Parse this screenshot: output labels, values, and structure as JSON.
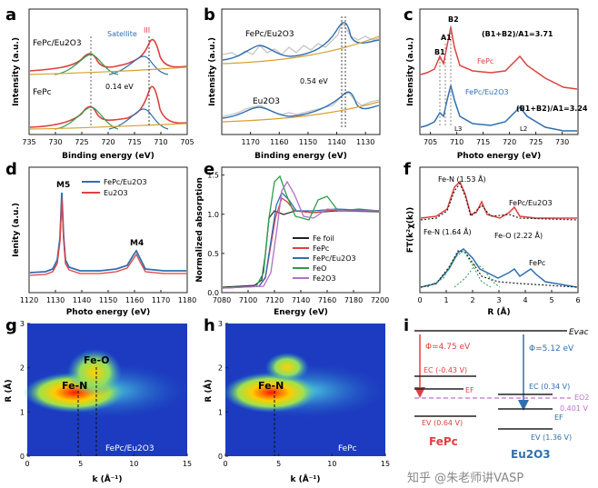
{
  "panels": {
    "a": {
      "letter": "a",
      "xlabel": "Binding energy (eV)",
      "ylabel": "Intensity (a.u.)",
      "xlim": [
        735,
        705
      ],
      "xticks": [
        735,
        730,
        725,
        720,
        715,
        710,
        705
      ],
      "labels": {
        "top": "FePc/Eu2O3",
        "bottom": "FePc",
        "satellite": "Satellite",
        "iii": "III",
        "shift": "0.14 eV"
      }
    },
    "b": {
      "letter": "b",
      "xlabel": "Binding energy (eV)",
      "ylabel": "Intensity (a.u.)",
      "xlim": [
        1180,
        1125
      ],
      "xticks": [
        1170,
        1160,
        1150,
        1140,
        1130
      ],
      "labels": {
        "top": "FePc/Eu2O3",
        "bottom": "Eu2O3",
        "shift": "0.54 eV"
      }
    },
    "c": {
      "letter": "c",
      "xlabel": "Photo energy (eV)",
      "ylabel": "Intensity (a.u.)",
      "xlim": [
        703,
        733
      ],
      "xticks": [
        705,
        710,
        715,
        720,
        725,
        730
      ],
      "labels": {
        "b1": "B1",
        "a1": "A1",
        "b2": "B2",
        "ratio_top": "(B1+B2)/A1=3.71",
        "ratio_bottom": "(B1+B2)/A1=3.24",
        "fepc": "FePc",
        "fepc_eu": "FePc/Eu2O3",
        "l3": "L3",
        "l2": "L2"
      }
    },
    "d": {
      "letter": "d",
      "xlabel": "Photo energy (eV)",
      "ylabel": "Ienity (a.u.)",
      "xlim": [
        1120,
        1180
      ],
      "xticks": [
        1120,
        1130,
        1140,
        1150,
        1160,
        1170,
        1180
      ],
      "labels": {
        "m5": "M5",
        "m4": "M4"
      },
      "legend": [
        "FePc/Eu2O3",
        "Eu2O3"
      ]
    },
    "e": {
      "letter": "e",
      "xlabel": "Energy (eV)",
      "ylabel": "Normalized absorption",
      "xlim": [
        7080,
        7200
      ],
      "ylim": [
        0,
        1.6
      ],
      "xticks": [
        7080,
        7100,
        7120,
        7140,
        7160,
        7180,
        7200
      ],
      "yticks": [
        0.0,
        0.5,
        1.0,
        1.5
      ],
      "legend": [
        "Fe foil",
        "FePc",
        "FePc/Eu2O3",
        "FeO",
        "Fe2O3"
      ]
    },
    "f": {
      "letter": "f",
      "xlabel": "R (Å)",
      "ylabel": "FT(k²χ(k))",
      "xlim": [
        0,
        6
      ],
      "xticks": [
        0,
        1,
        2,
        3,
        4,
        5,
        6
      ],
      "labels": {
        "fen_top": "Fe-N (1.53 Å)",
        "top": "FePc/Eu2O3",
        "fen_bottom": "Fe-N (1.64 Å)",
        "feo": "Fe-O (2.22 Å)",
        "bottom": "FePc"
      }
    },
    "g": {
      "letter": "g",
      "xlabel": "k (Å⁻¹)",
      "ylabel": "R (Å)",
      "xlim": [
        0,
        15
      ],
      "ylim": [
        0,
        3
      ],
      "xticks": [
        0,
        5,
        10,
        15
      ],
      "yticks": [
        0,
        1,
        2,
        3
      ],
      "labels": {
        "fen": "Fe-N",
        "feo": "Fe-O",
        "sample": "FePc/Eu2O3"
      }
    },
    "h": {
      "letter": "h",
      "xlabel": "k (Å⁻¹)",
      "ylabel": "R (Å)",
      "xlim": [
        0,
        15
      ],
      "ylim": [
        0,
        3
      ],
      "xticks": [
        0,
        5,
        10,
        15
      ],
      "yticks": [
        0,
        1,
        2,
        3
      ],
      "labels": {
        "fen": "Fe-N",
        "sample": "FePc"
      }
    },
    "i": {
      "letter": "i",
      "labels": {
        "evac": "Evac",
        "phi_left": "Φ=4.75 eV",
        "phi_right": "Φ=5.12 eV",
        "ec_left": "EC (-0.43 V)",
        "ef_left": "EF",
        "ev_left": "EV (0.64 V)",
        "ec_right": "EC (0.34 V)",
        "eo2": "EO2",
        "eo2_val": "0.401 V",
        "ef_right": "EF",
        "ev_right": "EV (1.36 V)",
        "left_name": "FePc",
        "right_name": "Eu2O3"
      }
    }
  },
  "colors": {
    "red": "#e04040",
    "blue": "#2f6fb0",
    "green": "#2d9d4a",
    "purple": "#b070c8",
    "gold": "#d8a030",
    "black": "#222222"
  },
  "watermark": "知乎 @朱老师讲VASP",
  "chart_data": [
    {
      "panel": "a",
      "type": "line",
      "title": "",
      "xlabel": "Binding energy (eV)",
      "ylabel": "Intensity (a.u.)",
      "xlim": [
        735,
        705
      ],
      "series": [
        {
          "name": "FePc/Eu2O3",
          "peaks_x": [
            723.8,
            714.5,
            710.0
          ]
        },
        {
          "name": "FePc",
          "peaks_x": [
            723.8,
            714.5,
            709.9
          ]
        }
      ]
    },
    {
      "panel": "b",
      "type": "line",
      "title": "",
      "xlabel": "Binding energy (eV)",
      "ylabel": "Intensity (a.u.)",
      "xlim": [
        1180,
        1125
      ],
      "series": [
        {
          "name": "FePc/Eu2O3",
          "peaks_x": [
            1164.5,
            1134.6
          ]
        },
        {
          "name": "Eu2O3",
          "peaks_x": [
            1164.5,
            1134.1
          ]
        }
      ]
    },
    {
      "panel": "c",
      "type": "line",
      "title": "",
      "xlabel": "Photo energy (eV)",
      "ylabel": "Intensity (a.u.)",
      "xlim": [
        703,
        733
      ],
      "series": [
        {
          "name": "FePc",
          "peaks_x": [
            707.2,
            708.5,
            709.8,
            722.3
          ]
        },
        {
          "name": "FePc/Eu2O3",
          "peaks_x": [
            707.2,
            708.5,
            709.8,
            722.3
          ]
        }
      ]
    },
    {
      "panel": "d",
      "type": "line",
      "title": "",
      "xlabel": "Photo energy (eV)",
      "ylabel": "Ienity (a.u.)",
      "xlim": [
        1120,
        1180
      ],
      "series": [
        {
          "name": "FePc/Eu2O3",
          "peaks_x": [
            1134.5,
            1162
          ]
        },
        {
          "name": "Eu2O3",
          "peaks_x": [
            1134.5,
            1162
          ]
        }
      ]
    },
    {
      "panel": "e",
      "type": "line",
      "title": "",
      "xlabel": "Energy (eV)",
      "ylabel": "Normalized absorption",
      "xlim": [
        7080,
        7200
      ],
      "ylim": [
        0,
        1.6
      ],
      "series": [
        {
          "name": "Fe foil"
        },
        {
          "name": "FePc"
        },
        {
          "name": "FePc/Eu2O3"
        },
        {
          "name": "FeO",
          "peak_y": 1.47
        },
        {
          "name": "Fe2O3"
        }
      ]
    },
    {
      "panel": "f",
      "type": "line",
      "title": "",
      "xlabel": "R (Å)",
      "ylabel": "FT(k²χ(k))",
      "xlim": [
        0,
        6
      ],
      "series": [
        {
          "name": "FePc/Eu2O3",
          "peaks_x": [
            1.53,
            2.3,
            3.7
          ]
        },
        {
          "name": "FePc",
          "peaks_x": [
            1.64,
            2.22,
            3.7,
            4.5
          ]
        }
      ]
    },
    {
      "panel": "g",
      "type": "heatmap",
      "title": "",
      "xlabel": "k (Å⁻¹)",
      "ylabel": "R (Å)",
      "xlim": [
        0,
        15
      ],
      "ylim": [
        0,
        3
      ],
      "features": [
        {
          "name": "Fe-N",
          "k": 4.8,
          "R": 1.5
        },
        {
          "name": "Fe-O",
          "k": 6.6,
          "R": 2.1
        }
      ]
    },
    {
      "panel": "h",
      "type": "heatmap",
      "title": "",
      "xlabel": "k (Å⁻¹)",
      "ylabel": "R (Å)",
      "xlim": [
        0,
        15
      ],
      "ylim": [
        0,
        3
      ],
      "features": [
        {
          "name": "Fe-N",
          "k": 4.5,
          "R": 1.5
        }
      ]
    }
  ]
}
